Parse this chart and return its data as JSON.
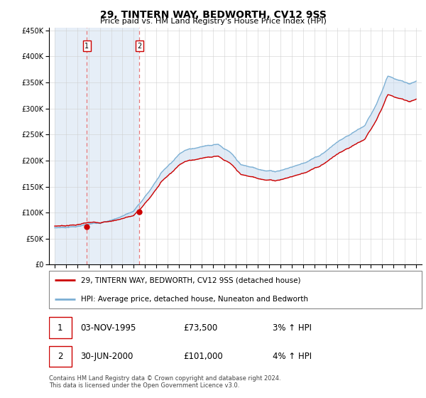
{
  "title": "29, TINTERN WAY, BEDWORTH, CV12 9SS",
  "subtitle": "Price paid vs. HM Land Registry's House Price Index (HPI)",
  "sale1_date": 1995.84,
  "sale1_price": 73500,
  "sale2_date": 2000.5,
  "sale2_price": 101000,
  "hpi_line_color": "#7bafd4",
  "price_line_color": "#cc0000",
  "sale_marker_color": "#cc0000",
  "dashed_line_color": "#e87878",
  "fill_color": "#c5d9ee",
  "hatch_region_color": "#dce8f5",
  "legend1_label": "29, TINTERN WAY, BEDWORTH, CV12 9SS (detached house)",
  "legend2_label": "HPI: Average price, detached house, Nuneaton and Bedworth",
  "table_row1": [
    "1",
    "03-NOV-1995",
    "£73,500",
    "3% ↑ HPI"
  ],
  "table_row2": [
    "2",
    "30-JUN-2000",
    "£101,000",
    "4% ↑ HPI"
  ],
  "footnote": "Contains HM Land Registry data © Crown copyright and database right 2024.\nThis data is licensed under the Open Government Licence v3.0."
}
